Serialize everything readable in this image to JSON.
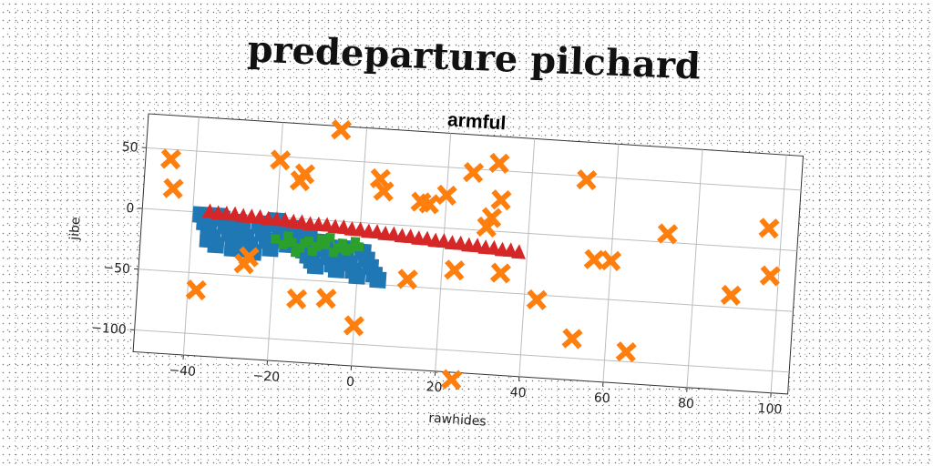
{
  "figure": {
    "title": "predeparture pilchard"
  },
  "chart_data": {
    "type": "scatter",
    "title": "armful",
    "xlabel": "rawhides",
    "ylabel": "jibe",
    "xlim": [
      -52,
      104
    ],
    "ylim": [
      -118,
      78
    ],
    "xticks": [
      -40,
      -20,
      0,
      20,
      40,
      60,
      80,
      100
    ],
    "yticks": [
      50,
      0,
      -50,
      -100
    ],
    "grid": true,
    "colors": {
      "blue": "#1f77b4",
      "orange": "#ff7f0e",
      "green": "#2ca02c",
      "red": "#d62728"
    },
    "series": [
      {
        "marker": "square",
        "color": "#1f77b4",
        "points": [
          [
            -38,
            -2
          ],
          [
            -37,
            -8
          ],
          [
            -36,
            -14
          ],
          [
            -35,
            -20
          ],
          [
            -34,
            -26
          ],
          [
            -33,
            -4
          ],
          [
            -32,
            -10
          ],
          [
            -31,
            -16
          ],
          [
            -30,
            -22
          ],
          [
            -30,
            -28
          ],
          [
            -29,
            -6
          ],
          [
            -28,
            -12
          ],
          [
            -27,
            -18
          ],
          [
            -26,
            -24
          ],
          [
            -25,
            -30
          ],
          [
            -24,
            -8
          ],
          [
            -23,
            -14
          ],
          [
            -22,
            -20
          ],
          [
            -21,
            -26
          ],
          [
            -20,
            -3
          ],
          [
            -19,
            -10
          ],
          [
            -18,
            -16
          ],
          [
            -17,
            -22
          ],
          [
            -16,
            -8
          ],
          [
            -15,
            -14
          ],
          [
            -14,
            -20
          ],
          [
            -13,
            -26
          ],
          [
            -12,
            -30
          ],
          [
            -11,
            -34
          ],
          [
            -10,
            -38
          ],
          [
            -9,
            -18
          ],
          [
            -8,
            -24
          ],
          [
            -7,
            -30
          ],
          [
            -6,
            -36
          ],
          [
            -5,
            -40
          ],
          [
            -4,
            -22
          ],
          [
            -3,
            -28
          ],
          [
            -2,
            -34
          ],
          [
            -1,
            -40
          ],
          [
            0,
            -44
          ],
          [
            1,
            -24
          ],
          [
            2,
            -30
          ],
          [
            3,
            -36
          ],
          [
            4,
            -42
          ],
          [
            5,
            -46
          ],
          [
            -36,
            -22
          ],
          [
            -34,
            -2
          ],
          [
            -28,
            -28
          ],
          [
            -22,
            -6
          ],
          [
            -12,
            -12
          ]
        ]
      },
      {
        "marker": "x",
        "color": "#ff7f0e",
        "points": [
          [
            -46,
            42
          ],
          [
            -45,
            18
          ],
          [
            -38,
            -64
          ],
          [
            -27,
            -40
          ],
          [
            -26,
            -34
          ],
          [
            -20,
            47
          ],
          [
            -15,
            31
          ],
          [
            -14,
            37
          ],
          [
            -14,
            -66
          ],
          [
            -7,
            -64
          ],
          [
            -6,
            75
          ],
          [
            0,
            -85
          ],
          [
            4,
            37
          ],
          [
            5,
            27
          ],
          [
            12,
            -44
          ],
          [
            14,
            20
          ],
          [
            16,
            19
          ],
          [
            20,
            27
          ],
          [
            23,
            -34
          ],
          [
            24,
            -124
          ],
          [
            26,
            47
          ],
          [
            30,
            3
          ],
          [
            31,
            11
          ],
          [
            32,
            56
          ],
          [
            33,
            26
          ],
          [
            34,
            -34
          ],
          [
            43,
            -54
          ],
          [
            52,
            -84
          ],
          [
            53,
            47
          ],
          [
            56,
            -18
          ],
          [
            60,
            -18
          ],
          [
            65,
            -92
          ],
          [
            73,
            7
          ],
          [
            89,
            -40
          ],
          [
            97,
            17
          ],
          [
            98,
            -22
          ]
        ]
      },
      {
        "marker": "square-small",
        "color": "#2ca02c",
        "points": [
          [
            -20,
            -18
          ],
          [
            -18,
            -22
          ],
          [
            -16,
            -20
          ],
          [
            -14,
            -24
          ],
          [
            -12,
            -18
          ],
          [
            -10,
            -22
          ],
          [
            -8,
            -20
          ],
          [
            -6,
            -26
          ],
          [
            -4,
            -18
          ],
          [
            -2,
            -22
          ],
          [
            0,
            -20
          ],
          [
            -15,
            -28
          ],
          [
            -11,
            -26
          ],
          [
            -7,
            -14
          ],
          [
            -3,
            -24
          ],
          [
            -17,
            -15
          ],
          [
            -9,
            -16
          ],
          [
            -5,
            -22
          ],
          [
            -13,
            -20
          ],
          [
            -1,
            -16
          ]
        ]
      },
      {
        "marker": "triangle",
        "color": "#d62728",
        "points": [
          [
            -36,
            1
          ],
          [
            -34,
            0
          ],
          [
            -32,
            0
          ],
          [
            -30,
            0
          ],
          [
            -28,
            -1
          ],
          [
            -26,
            -1
          ],
          [
            -24,
            -1
          ],
          [
            -22,
            -2
          ],
          [
            -20,
            -2
          ],
          [
            -18,
            -2
          ],
          [
            -16,
            -3
          ],
          [
            -14,
            -3
          ],
          [
            -12,
            -4
          ],
          [
            -10,
            -4
          ],
          [
            -8,
            -4
          ],
          [
            -6,
            -5
          ],
          [
            -4,
            -5
          ],
          [
            -2,
            -6
          ],
          [
            0,
            -6
          ],
          [
            2,
            -7
          ],
          [
            4,
            -7
          ],
          [
            6,
            -8
          ],
          [
            8,
            -8
          ],
          [
            10,
            -9
          ],
          [
            12,
            -9
          ],
          [
            14,
            -10
          ],
          [
            16,
            -10
          ],
          [
            18,
            -11
          ],
          [
            20,
            -11
          ],
          [
            22,
            -12
          ],
          [
            24,
            -12
          ],
          [
            26,
            -13
          ],
          [
            28,
            -13
          ],
          [
            30,
            -14
          ],
          [
            32,
            -14
          ],
          [
            34,
            -15
          ],
          [
            36,
            -15
          ],
          [
            38,
            -16
          ]
        ]
      }
    ]
  }
}
